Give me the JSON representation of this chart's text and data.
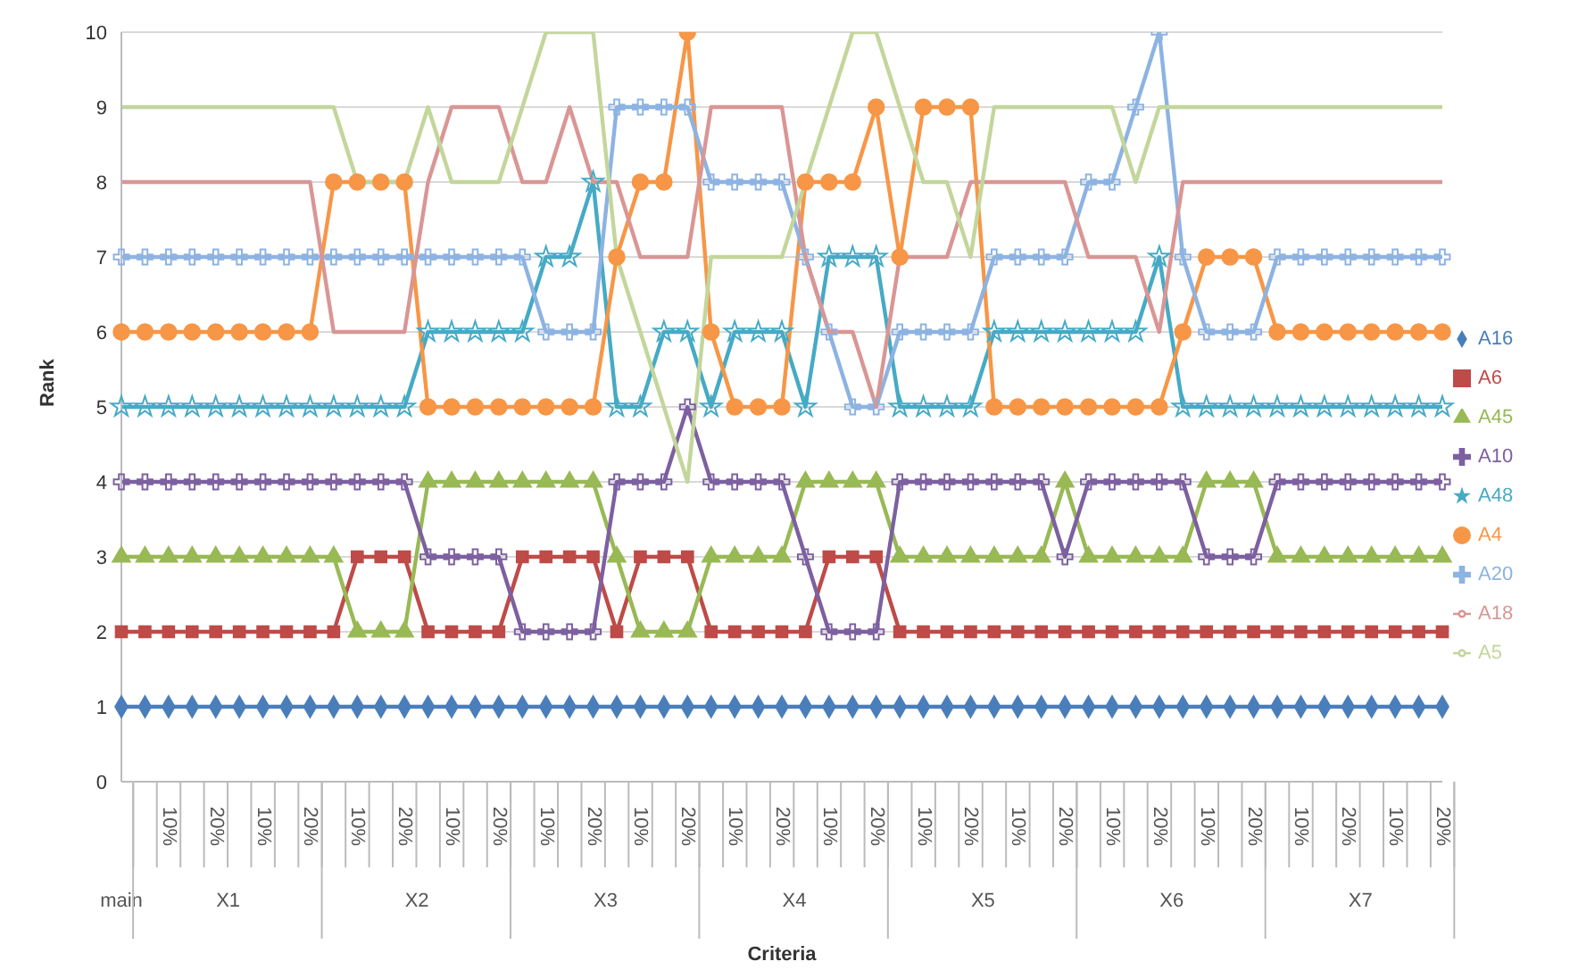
{
  "chart_data": {
    "type": "line",
    "xlabel": "Criteria",
    "ylabel": "Rank",
    "ylim": [
      0,
      10
    ],
    "yticks": [
      0,
      1,
      2,
      3,
      4,
      5,
      6,
      7,
      8,
      9,
      10
    ],
    "grid": "y",
    "legend": "right",
    "categories": [
      null,
      null,
      "10%",
      null,
      "20%",
      null,
      "10%",
      null,
      "20%",
      null,
      "10%",
      null,
      "20%",
      null,
      "10%",
      null,
      "20%",
      null,
      "10%",
      null,
      "20%",
      null,
      "10%",
      null,
      "20%",
      null,
      "10%",
      null,
      "20%",
      null,
      "10%",
      null,
      "20%",
      null,
      "10%",
      null,
      "20%",
      null,
      "10%",
      null,
      "20%",
      null,
      "10%",
      null,
      "20%",
      null,
      "10%",
      null,
      "20%",
      null,
      "10%",
      null,
      "20%",
      null,
      "10%",
      null,
      "20%"
    ],
    "annotations": [
      "main",
      "X1",
      "X2",
      "X3",
      "X4",
      "X5",
      "X6",
      "X7"
    ],
    "series": [
      {
        "name": "A16",
        "color": "#4a7ebb",
        "marker": "diamond",
        "values": [
          1,
          1,
          1,
          1,
          1,
          1,
          1,
          1,
          1,
          1,
          1,
          1,
          1,
          1,
          1,
          1,
          1,
          1,
          1,
          1,
          1,
          1,
          1,
          1,
          1,
          1,
          1,
          1,
          1,
          1,
          1,
          1,
          1,
          1,
          1,
          1,
          1,
          1,
          1,
          1,
          1,
          1,
          1,
          1,
          1,
          1,
          1,
          1,
          1,
          1,
          1,
          1,
          1,
          1,
          1,
          1,
          1
        ]
      },
      {
        "name": "A6",
        "color": "#be4b48",
        "marker": "square",
        "values": [
          2,
          2,
          2,
          2,
          2,
          2,
          2,
          2,
          2,
          2,
          3,
          3,
          3,
          2,
          2,
          2,
          2,
          3,
          3,
          3,
          3,
          2,
          3,
          3,
          3,
          2,
          2,
          2,
          2,
          2,
          3,
          3,
          3,
          2,
          2,
          2,
          2,
          2,
          2,
          2,
          2,
          2,
          2,
          2,
          2,
          2,
          2,
          2,
          2,
          2,
          2,
          2,
          2,
          2,
          2,
          2,
          2
        ]
      },
      {
        "name": "A45",
        "color": "#98b954",
        "marker": "triangle",
        "values": [
          3,
          3,
          3,
          3,
          3,
          3,
          3,
          3,
          3,
          3,
          2,
          2,
          2,
          4,
          4,
          4,
          4,
          4,
          4,
          4,
          4,
          3,
          2,
          2,
          2,
          3,
          3,
          3,
          3,
          4,
          4,
          4,
          4,
          3,
          3,
          3,
          3,
          3,
          3,
          3,
          4,
          3,
          3,
          3,
          3,
          3,
          4,
          4,
          4,
          3,
          3,
          3,
          3,
          3,
          3,
          3,
          3
        ]
      },
      {
        "name": "A10",
        "color": "#7d60a0",
        "marker": "cross",
        "values": [
          4,
          4,
          4,
          4,
          4,
          4,
          4,
          4,
          4,
          4,
          4,
          4,
          4,
          3,
          3,
          3,
          3,
          2,
          2,
          2,
          2,
          4,
          4,
          4,
          5,
          4,
          4,
          4,
          4,
          3,
          2,
          2,
          2,
          4,
          4,
          4,
          4,
          4,
          4,
          4,
          3,
          4,
          4,
          4,
          4,
          4,
          3,
          3,
          3,
          4,
          4,
          4,
          4,
          4,
          4,
          4,
          4
        ]
      },
      {
        "name": "A48",
        "color": "#46aac5",
        "marker": "star",
        "values": [
          5,
          5,
          5,
          5,
          5,
          5,
          5,
          5,
          5,
          5,
          5,
          5,
          5,
          6,
          6,
          6,
          6,
          6,
          7,
          7,
          8,
          5,
          5,
          6,
          6,
          5,
          6,
          6,
          6,
          5,
          7,
          7,
          7,
          5,
          5,
          5,
          5,
          6,
          6,
          6,
          6,
          6,
          6,
          6,
          7,
          5,
          5,
          5,
          5,
          5,
          5,
          5,
          5,
          5,
          5,
          5,
          5
        ]
      },
      {
        "name": "A4",
        "color": "#f79646",
        "marker": "circle",
        "values": [
          6,
          6,
          6,
          6,
          6,
          6,
          6,
          6,
          6,
          8,
          8,
          8,
          8,
          5,
          5,
          5,
          5,
          5,
          5,
          5,
          5,
          7,
          8,
          8,
          10,
          6,
          5,
          5,
          5,
          8,
          8,
          8,
          9,
          7,
          9,
          9,
          9,
          5,
          5,
          5,
          5,
          5,
          5,
          5,
          5,
          6,
          7,
          7,
          7,
          6,
          6,
          6,
          6,
          6,
          6,
          6,
          6
        ]
      },
      {
        "name": "A20",
        "color": "#8db3e2",
        "marker": "cross",
        "values": [
          7,
          7,
          7,
          7,
          7,
          7,
          7,
          7,
          7,
          7,
          7,
          7,
          7,
          7,
          7,
          7,
          7,
          7,
          6,
          6,
          6,
          9,
          9,
          9,
          9,
          8,
          8,
          8,
          8,
          7,
          6,
          5,
          5,
          6,
          6,
          6,
          6,
          7,
          7,
          7,
          7,
          8,
          8,
          9,
          10,
          7,
          6,
          6,
          6,
          7,
          7,
          7,
          7,
          7,
          7,
          7,
          7
        ]
      },
      {
        "name": "A18",
        "color": "#d99694",
        "marker": "none",
        "values": [
          8,
          8,
          8,
          8,
          8,
          8,
          8,
          8,
          8,
          6,
          6,
          6,
          6,
          8,
          9,
          9,
          9,
          8,
          8,
          9,
          8,
          8,
          7,
          7,
          7,
          9,
          9,
          9,
          9,
          7,
          6,
          6,
          5,
          7,
          7,
          7,
          8,
          8,
          8,
          8,
          8,
          7,
          7,
          7,
          6,
          8,
          8,
          8,
          8,
          8,
          8,
          8,
          8,
          8,
          8,
          8,
          8
        ]
      },
      {
        "name": "A5",
        "color": "#c3d69b",
        "marker": "none",
        "values": [
          9,
          9,
          9,
          9,
          9,
          9,
          9,
          9,
          9,
          9,
          8,
          8,
          8,
          9,
          8,
          8,
          8,
          9,
          10,
          10,
          10,
          7,
          6,
          5,
          4,
          7,
          7,
          7,
          7,
          8,
          9,
          10,
          10,
          9,
          8,
          8,
          7,
          9,
          9,
          9,
          9,
          9,
          9,
          8,
          9,
          9,
          9,
          9,
          9,
          9,
          9,
          9,
          9,
          9,
          9,
          9,
          9
        ]
      }
    ]
  }
}
